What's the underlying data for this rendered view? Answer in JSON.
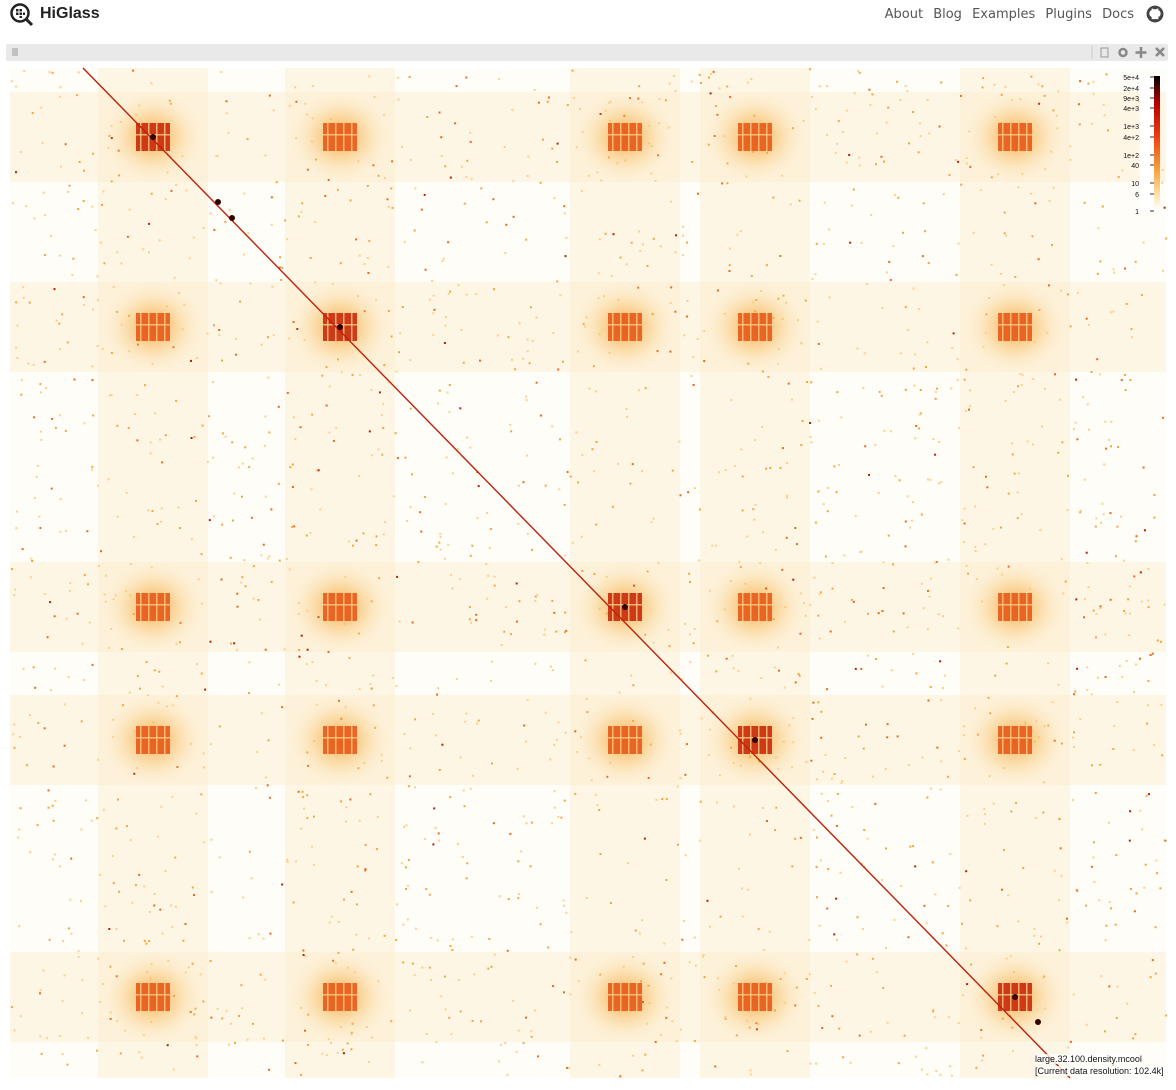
{
  "header": {
    "title": "HiGlass",
    "nav": [
      "About",
      "Blog",
      "Examples",
      "Plugins",
      "Docs"
    ]
  },
  "heatmap": {
    "colorbar": {
      "labels": [
        "5e+4",
        "2e+4",
        "9e+3",
        "4e+3",
        "1e+3",
        "4e+2",
        "1e+2",
        "40",
        "10",
        "6",
        "1"
      ]
    },
    "track_name": "large.32.100.density.mcool",
    "resolution_label": "[Current data resolution: 102.4k]"
  }
}
